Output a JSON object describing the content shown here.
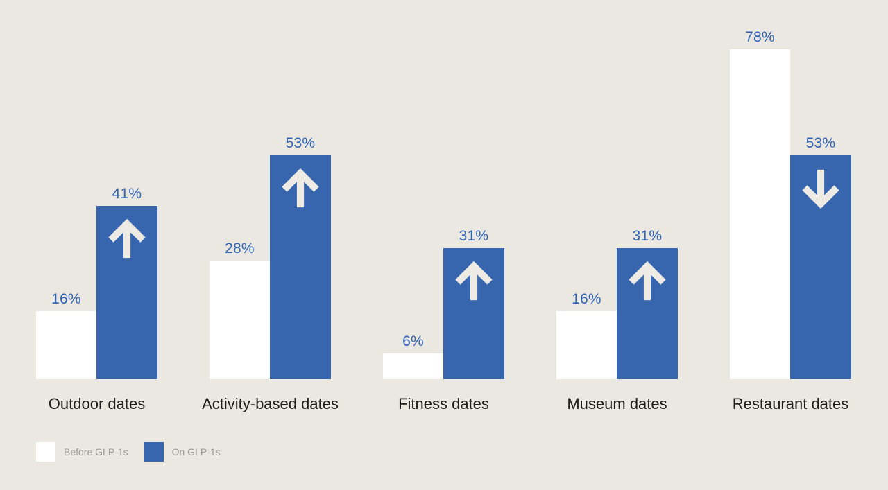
{
  "colors": {
    "background": "#ebe8e2",
    "bar_before": "#ffffff",
    "bar_on": "#3766ae",
    "value_label": "#2e62b4",
    "category_label": "#1d1d1b",
    "legend_label": "#9b9a95",
    "arrow": "#eeebe4"
  },
  "chart_data": {
    "type": "bar",
    "title": "",
    "categories": [
      "Outdoor dates",
      "Activity-based dates",
      "Fitness dates",
      "Museum dates",
      "Restaurant dates"
    ],
    "series": [
      {
        "name": "Before GLP-1s",
        "values": [
          16,
          28,
          6,
          16,
          78
        ],
        "labels": [
          "16%",
          "28%",
          "6%",
          "16%",
          "78%"
        ]
      },
      {
        "name": "On GLP-1s",
        "values": [
          41,
          53,
          31,
          31,
          53
        ],
        "labels": [
          "41%",
          "53%",
          "31%",
          "31%",
          "53%"
        ]
      }
    ],
    "trend_arrows": [
      "up",
      "up",
      "up",
      "up",
      "down"
    ],
    "value_suffix": "%",
    "ylim": [
      0,
      100
    ],
    "grid": false,
    "legend_position": "bottom-left"
  },
  "legend": {
    "items": [
      {
        "label": "Before GLP-1s",
        "swatch_color": "#ffffff"
      },
      {
        "label": "On GLP-1s",
        "swatch_color": "#3766ae"
      }
    ]
  }
}
